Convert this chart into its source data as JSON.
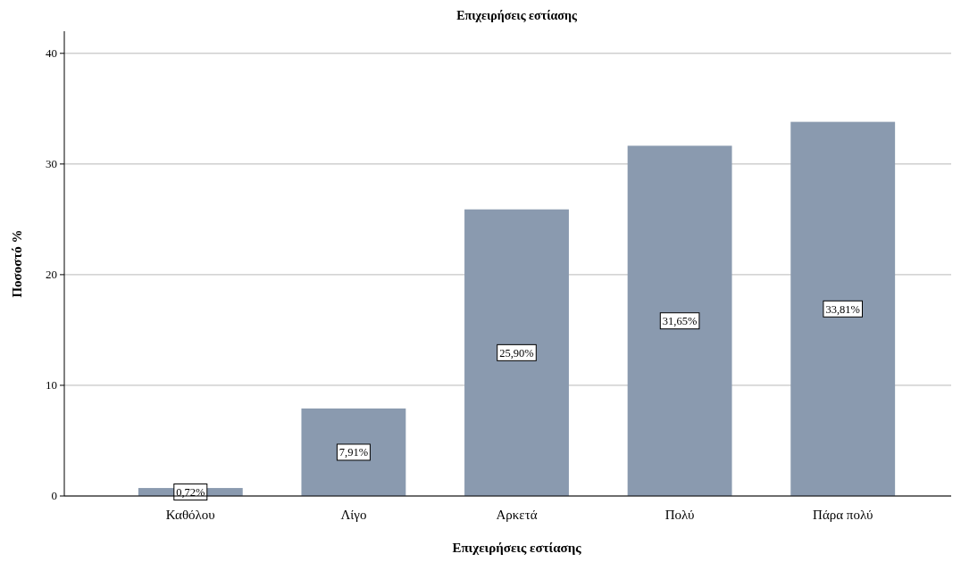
{
  "chart_data": {
    "type": "bar",
    "title": "Επιχειρήσεις εστίασης",
    "xlabel": "Επιχειρήσεις εστίασης",
    "ylabel": "Ποσοστό %",
    "categories": [
      "Καθόλου",
      "Λίγο",
      "Αρκετά",
      "Πολύ",
      "Πάρα πολύ"
    ],
    "values": [
      0.72,
      7.91,
      25.9,
      31.65,
      33.81
    ],
    "value_labels": [
      "0,72%",
      "7,91%",
      "25,90%",
      "31,65%",
      "33,81%"
    ],
    "color": "#8a9aaf",
    "ylim": [
      0,
      42
    ],
    "yticks": [
      0,
      10,
      20,
      30,
      40
    ],
    "grid": "y"
  }
}
